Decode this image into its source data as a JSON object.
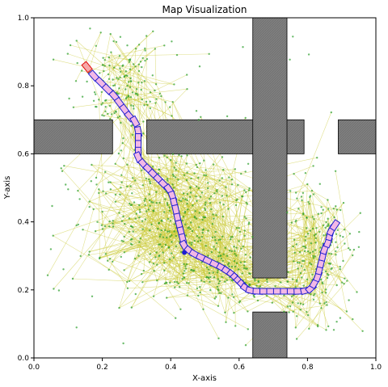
{
  "chart_data": {
    "type": "scatter",
    "title": "Map Visualization",
    "xlabel": "X-axis",
    "ylabel": "Y-axis",
    "xlim": [
      0.0,
      1.0
    ],
    "ylim": [
      0.0,
      1.0
    ],
    "x_ticks": [
      "0.0",
      "0.2",
      "0.4",
      "0.6",
      "0.8",
      "1.0"
    ],
    "y_ticks": [
      "0.0",
      "0.2",
      "0.4",
      "0.6",
      "0.8",
      "1.0"
    ],
    "grid": false,
    "colors": {
      "obstacle_fill": "#7f7f7f",
      "obstacle_edge": "#000000",
      "tree_edge": "#c8c832",
      "node": "#2ca02c",
      "path_box_fill": "#f2b8e6",
      "path_box_edge": "#1f1fd0",
      "start_box_edge": "#e01010",
      "start_box_fill": "#f7a8a8"
    },
    "obstacles": [
      {
        "x0": 0.0,
        "y0": 0.6,
        "x1": 0.23,
        "y1": 0.7
      },
      {
        "x0": 0.33,
        "y0": 0.6,
        "x1": 0.79,
        "y1": 0.7
      },
      {
        "x0": 0.89,
        "y0": 0.6,
        "x1": 1.0,
        "y1": 0.7
      },
      {
        "x0": 0.64,
        "y0": 0.235,
        "x1": 0.74,
        "y1": 1.0
      },
      {
        "x0": 0.64,
        "y0": 0.0,
        "x1": 0.74,
        "y1": 0.135
      }
    ],
    "path": [
      [
        0.155,
        0.855
      ],
      [
        0.175,
        0.83
      ],
      [
        0.195,
        0.81
      ],
      [
        0.215,
        0.79
      ],
      [
        0.235,
        0.77
      ],
      [
        0.25,
        0.75
      ],
      [
        0.265,
        0.73
      ],
      [
        0.28,
        0.71
      ],
      [
        0.295,
        0.695
      ],
      [
        0.305,
        0.665
      ],
      [
        0.305,
        0.645
      ],
      [
        0.305,
        0.625
      ],
      [
        0.305,
        0.605
      ],
      [
        0.305,
        0.59
      ],
      [
        0.32,
        0.57
      ],
      [
        0.335,
        0.555
      ],
      [
        0.35,
        0.54
      ],
      [
        0.365,
        0.525
      ],
      [
        0.38,
        0.51
      ],
      [
        0.395,
        0.495
      ],
      [
        0.405,
        0.475
      ],
      [
        0.41,
        0.455
      ],
      [
        0.415,
        0.435
      ],
      [
        0.42,
        0.41
      ],
      [
        0.425,
        0.39
      ],
      [
        0.43,
        0.37
      ],
      [
        0.435,
        0.35
      ],
      [
        0.44,
        0.33
      ],
      [
        0.455,
        0.315
      ],
      [
        0.47,
        0.305
      ],
      [
        0.49,
        0.295
      ],
      [
        0.51,
        0.285
      ],
      [
        0.53,
        0.275
      ],
      [
        0.55,
        0.265
      ],
      [
        0.565,
        0.255
      ],
      [
        0.58,
        0.245
      ],
      [
        0.59,
        0.235
      ],
      [
        0.6,
        0.225
      ],
      [
        0.61,
        0.215
      ],
      [
        0.62,
        0.205
      ],
      [
        0.635,
        0.198
      ],
      [
        0.655,
        0.196
      ],
      [
        0.675,
        0.196
      ],
      [
        0.695,
        0.196
      ],
      [
        0.715,
        0.196
      ],
      [
        0.735,
        0.196
      ],
      [
        0.755,
        0.196
      ],
      [
        0.775,
        0.196
      ],
      [
        0.795,
        0.198
      ],
      [
        0.81,
        0.205
      ],
      [
        0.82,
        0.22
      ],
      [
        0.83,
        0.24
      ],
      [
        0.835,
        0.26
      ],
      [
        0.84,
        0.28
      ],
      [
        0.845,
        0.3
      ],
      [
        0.85,
        0.32
      ],
      [
        0.86,
        0.34
      ],
      [
        0.865,
        0.36
      ],
      [
        0.87,
        0.375
      ],
      [
        0.88,
        0.39
      ]
    ],
    "tree_clusters": [
      {
        "cx": 0.26,
        "cy": 0.8,
        "sx": 0.07,
        "sy": 0.07,
        "nodes": 150
      },
      {
        "cx": 0.42,
        "cy": 0.42,
        "sx": 0.14,
        "sy": 0.13,
        "nodes": 420
      },
      {
        "cx": 0.6,
        "cy": 0.26,
        "sx": 0.08,
        "sy": 0.05,
        "nodes": 120
      },
      {
        "cx": 0.83,
        "cy": 0.3,
        "sx": 0.05,
        "sy": 0.11,
        "nodes": 190
      }
    ],
    "sparse_nodes": 60
  }
}
